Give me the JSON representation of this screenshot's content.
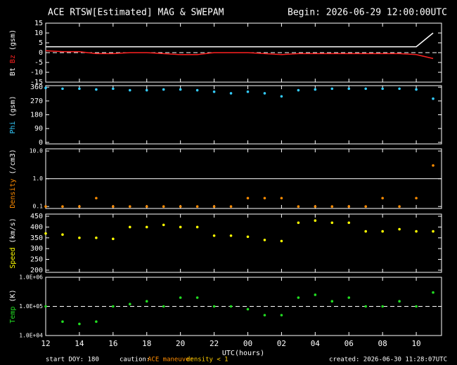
{
  "title": "ACE RTSW[Estimated] MAG & SWEPAM",
  "begin": "Begin: 2026-06-29 12:00:00UTC",
  "x_axis": {
    "label": "UTC(hours)",
    "xlim": [
      12,
      35.5
    ],
    "xticks": [
      12,
      14,
      16,
      18,
      20,
      22,
      {
        "value": 24,
        "label": "00"
      },
      {
        "value": 26,
        "label": "02"
      },
      {
        "value": 28,
        "label": "04"
      },
      {
        "value": 30,
        "label": "06"
      },
      {
        "value": 32,
        "label": "08"
      },
      {
        "value": 34,
        "label": "10"
      }
    ],
    "x": [
      12,
      13,
      14,
      15,
      16,
      17,
      18,
      19,
      20,
      21,
      22,
      23,
      24,
      25,
      26,
      27,
      28,
      29,
      30,
      31,
      32,
      33,
      34,
      35
    ]
  },
  "chart_data": [
    {
      "type": "line",
      "ylabel": "(gsm)",
      "ylim": [
        -15,
        15
      ],
      "yticks": [
        -15,
        -10,
        -5,
        0,
        5,
        10,
        15
      ],
      "dashed_line": 0,
      "series": [
        {
          "name": "Bt",
          "color": "#ffffff",
          "values": [
            3,
            3,
            3,
            3,
            3,
            3,
            3,
            3,
            3,
            3,
            3,
            3,
            3,
            3,
            3,
            3,
            3,
            3,
            3,
            3,
            3,
            3,
            3,
            10
          ]
        },
        {
          "name": "Bz",
          "color": "#ff2020",
          "values": [
            1,
            0.5,
            0.5,
            -0.5,
            -0.5,
            0,
            0,
            -0.5,
            -1,
            -1,
            0,
            0,
            0,
            -0.5,
            -1,
            -0.5,
            -0.5,
            -0.5,
            -0.5,
            -0.5,
            -0.5,
            -0.5,
            -1,
            -3
          ]
        }
      ]
    },
    {
      "type": "scatter",
      "ylabel": "(gsm)",
      "ylim": [
        -10,
        370
      ],
      "yticks": [
        0,
        90,
        180,
        270,
        360
      ],
      "series": [
        {
          "name": "Phi",
          "color": "#33ccff",
          "values": [
            355,
            350,
            350,
            345,
            350,
            340,
            340,
            345,
            345,
            340,
            330,
            320,
            330,
            320,
            300,
            340,
            345,
            350,
            350,
            350,
            350,
            350,
            345,
            285
          ]
        }
      ]
    },
    {
      "type": "scatter",
      "log": true,
      "ylabel": "(/cm3)",
      "ylim": [
        0.085,
        12
      ],
      "yticks": [
        0.1,
        {
          "value": 1,
          "label": "1.0"
        },
        {
          "value": 10,
          "label": "10.0"
        }
      ],
      "series": [
        {
          "name": "Density",
          "color": "#ff8c00",
          "values": [
            0.1,
            0.1,
            0.1,
            0.2,
            0.1,
            0.1,
            0.1,
            0.1,
            0.1,
            0.1,
            0.1,
            0.1,
            0.2,
            0.2,
            0.2,
            0.1,
            0.1,
            0.1,
            0.1,
            0.1,
            0.2,
            0.1,
            0.2,
            3
          ]
        }
      ]
    },
    {
      "type": "scatter",
      "ylabel": "(km/s)",
      "ylim": [
        190,
        460
      ],
      "yticks": [
        200,
        250,
        300,
        350,
        400,
        450
      ],
      "series": [
        {
          "name": "Speed",
          "color": "#ffff00",
          "values": [
            370,
            365,
            350,
            350,
            345,
            400,
            400,
            410,
            400,
            400,
            360,
            360,
            355,
            340,
            335,
            420,
            430,
            420,
            420,
            380,
            380,
            390,
            380,
            380
          ]
        }
      ]
    },
    {
      "type": "scatter",
      "log": true,
      "ylabel": "(K)",
      "ylim": [
        10000,
        1000000
      ],
      "dashed_line": 100000,
      "yticks": [
        {
          "value": 10000,
          "label": "1.0E+04"
        },
        {
          "value": 100000,
          "label": "1.0E+05"
        },
        {
          "value": 1000000,
          "label": "1.0E+06"
        }
      ],
      "series": [
        {
          "name": "Temp",
          "color": "#22dd22",
          "values": [
            100000,
            30000,
            25000,
            30000,
            100000,
            120000,
            150000,
            100000,
            200000,
            200000,
            100000,
            100000,
            80000,
            50000,
            50000,
            200000,
            250000,
            150000,
            200000,
            100000,
            100000,
            150000,
            100000,
            300000
          ]
        }
      ]
    }
  ],
  "footer": {
    "start": "start DOY: 180",
    "caution": "caution:",
    "maneuver": "ACE maneuver",
    "density": "density < 1",
    "created": "created: 2026-06-30 11:28:07UTC"
  }
}
